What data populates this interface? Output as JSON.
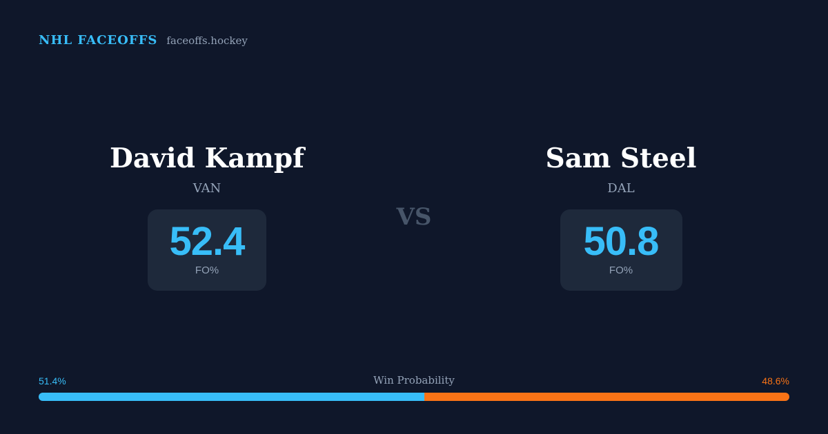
{
  "brand": {
    "name": "NHL FACEOFFS",
    "site": "faceoffs.hockey"
  },
  "players": [
    {
      "name": "David Kampf",
      "team": "VAN",
      "fo_value": "52.4",
      "fo_label": "FO%"
    },
    {
      "name": "Sam Steel",
      "team": "DAL",
      "fo_value": "50.8",
      "fo_label": "FO%"
    }
  ],
  "vs_label": "VS",
  "win_probability": {
    "title": "Win Probability",
    "left_label": "51.4%",
    "right_label": "48.6%",
    "left_value": 51.4,
    "right_value": 48.6
  },
  "colors": {
    "background": "#0f172a",
    "accent_left": "#38bdf8",
    "accent_right": "#f97316",
    "card": "#1e293b",
    "muted": "#94a3b8"
  }
}
